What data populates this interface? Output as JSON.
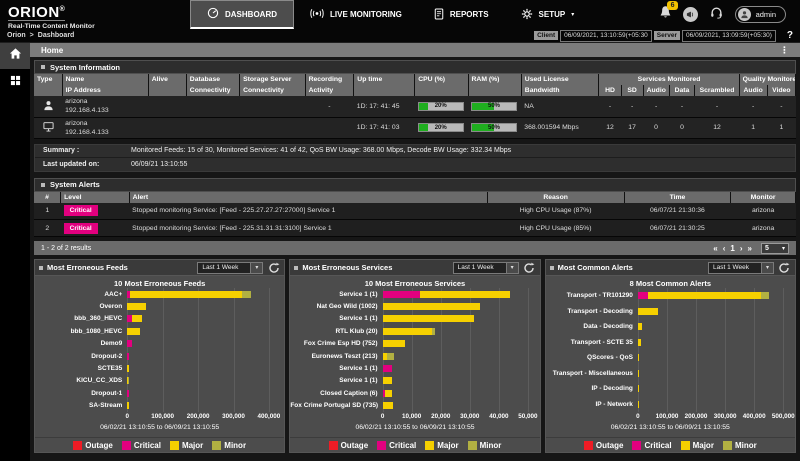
{
  "brand": {
    "name": "ORION",
    "reg": "®",
    "subtitle": "Real-Time Content Monitor"
  },
  "nav": {
    "dashboard": "DASHBOARD",
    "live_monitoring": "LIVE MONITORING",
    "reports": "REPORTS",
    "setup": "SETUP"
  },
  "topbar_right": {
    "notification_count": "6",
    "user_name": "admin"
  },
  "breadcrumb": {
    "root": "Orion",
    "separator": ">",
    "current": "Dashboard"
  },
  "clocks": {
    "client_label": "Client",
    "client_value": "06/09/2021, 13:10:59(+05:30",
    "server_label": "Server",
    "server_value": "06/09/2021, 13:09:59(+05:30)",
    "help": "?"
  },
  "page": {
    "tab_title": "Home"
  },
  "icons": {
    "kebab": "⋮",
    "caret_down": "▾"
  },
  "system_info": {
    "title": "System Information",
    "columns": {
      "type": "Type",
      "name": "Name",
      "ip": "IP Address",
      "alive": "Alive",
      "database": "Database",
      "storage": "Storage Server",
      "recording": "Recording",
      "connectivity": "Connectivity",
      "activity": "Activity",
      "uptime": "Up time",
      "cpu": "CPU (%)",
      "ram": "RAM (%)",
      "license": "Used License",
      "bandwidth": "Bandwidth",
      "services_group": "Services Monitored",
      "quality_group": "Quality Monitored",
      "hd": "HD",
      "sd": "SD",
      "audio": "Audio",
      "data": "Data",
      "scrambled": "Scrambled",
      "q_audio": "Audio",
      "q_video": "Video"
    },
    "rows": [
      {
        "name": "arizona",
        "ip": "192.168.4.133",
        "recording": "-",
        "uptime": "1D: 17: 41: 45",
        "cpu_pct": 20,
        "cpu_label": "20%",
        "ram_pct": 50,
        "ram_label": "50%",
        "bandwidth": "NA",
        "hd": "-",
        "sd": "-",
        "audio": "-",
        "data": "-",
        "scrambled": "-",
        "q_audio": "-",
        "q_video": "-"
      },
      {
        "name": "arizona",
        "ip": "192.168.4.133",
        "uptime": "1D: 17: 41: 03",
        "cpu_pct": 20,
        "cpu_label": "20%",
        "ram_pct": 50,
        "ram_label": "50%",
        "bandwidth": "368.001594 Mbps",
        "hd": "12",
        "sd": "17",
        "audio": "0",
        "data": "0",
        "scrambled": "12",
        "q_audio": "1",
        "q_video": "1"
      }
    ],
    "summary_label": "Summary :",
    "summary_text": "Monitored Feeds: 15 of 30, Monitored Services: 41 of 42, QoS BW Usage: 368.00 Mbps, Decode BW Usage: 332.34 Mbps",
    "last_updated_label": "Last updated on:",
    "last_updated_value": "06/09/21 13:10:55"
  },
  "system_alerts": {
    "title": "System Alerts",
    "columns": {
      "num": "#",
      "level": "Level",
      "alert": "Alert",
      "reason": "Reason",
      "time": "Time",
      "monitor": "Monitor"
    },
    "rows": [
      {
        "num": "1",
        "level": "Critical",
        "alert": "Stopped monitoring Service: [Feed - 225.27.27.27:27000] Service 1",
        "reason": "High CPU Usage (87%)",
        "time": "06/07/21 21:30:36",
        "monitor": "arizona"
      },
      {
        "num": "2",
        "level": "Critical",
        "alert": "Stopped monitoring Service: [Feed - 225.31.31.31:3100] Service 1",
        "reason": "High CPU Usage (85%)",
        "time": "06/07/21 21:30:25",
        "monitor": "arizona"
      }
    ]
  },
  "results_bar": {
    "text": "1 - 2 of 2 results",
    "pag_first": "«",
    "pag_prev": "‹",
    "pag_page": "1",
    "pag_next": "›",
    "pag_last": "»",
    "page_size": "5"
  },
  "colors": {
    "outage": "#ee1c25",
    "critical": "#e2007f",
    "major": "#f6d000",
    "minor": "#b1b042",
    "ok_green": "#28b828",
    "badge_yellow": "#f2c200"
  },
  "legend": [
    {
      "label": "Outage",
      "key": "outage"
    },
    {
      "label": "Critical",
      "key": "critical"
    },
    {
      "label": "Major",
      "key": "major"
    },
    {
      "label": "Minor",
      "key": "minor"
    }
  ],
  "chart_data": [
    {
      "panel_title": "Most Erroneous Feeds",
      "range_selector": "Last 1 Week",
      "type": "bar",
      "orientation": "horizontal",
      "stacked": true,
      "title": "10 Most Erroneous Feeds",
      "caption": "06/02/21 13:10:55 to 06/09/21 13:10:55",
      "xlim": [
        0,
        435000
      ],
      "xticks": [
        0,
        100000,
        200000,
        300000,
        400000
      ],
      "xtick_labels": [
        "0",
        "100,000",
        "200,000",
        "300,000",
        "400,000"
      ],
      "categories": [
        "AAC+",
        "Overon",
        "bbb_360_HEVC",
        "bbb_1080_HEVC",
        "Demo9",
        "Dropout-2",
        "SCTE35",
        "KICU_CC_XDS",
        "Dropout-1",
        "SA-Stream"
      ],
      "series": [
        {
          "name": "Outage",
          "key": "outage",
          "values": [
            0,
            0,
            0,
            0,
            0,
            0,
            0,
            0,
            0,
            0
          ]
        },
        {
          "name": "Critical",
          "key": "critical",
          "values": [
            7000,
            0,
            13000,
            0,
            14000,
            6000,
            0,
            0,
            5000,
            0
          ]
        },
        {
          "name": "Major",
          "key": "major",
          "values": [
            318000,
            52000,
            28000,
            35000,
            0,
            0,
            5000,
            3000,
            0,
            4000
          ]
        },
        {
          "name": "Minor",
          "key": "minor",
          "values": [
            24000,
            0,
            0,
            0,
            0,
            0,
            0,
            3000,
            0,
            0
          ]
        }
      ]
    },
    {
      "panel_title": "Most Erroneous Services",
      "range_selector": "Last 1 Week",
      "type": "bar",
      "orientation": "horizontal",
      "stacked": true,
      "title": "10 Most Erroneous Services",
      "caption": "06/02/21 13:10:55 to 06/09/21 13:10:55",
      "xlim": [
        0,
        53000
      ],
      "xticks": [
        0,
        10000,
        20000,
        30000,
        40000,
        50000
      ],
      "xtick_labels": [
        "0",
        "10,000",
        "20,000",
        "30,000",
        "40,000",
        "50,000"
      ],
      "categories": [
        "Service 1 (1)",
        "Nat Geo Wild (1002)",
        "Service 1 (1)",
        "RTL Klub (20)",
        "Fox Crime Esp HD (752)",
        "Euronews Teszt (213)",
        "Service 1 (1)",
        "Service 1 (1)",
        "Closed Caption (6)",
        "Fox Crime Portugal SD (735)"
      ],
      "series": [
        {
          "name": "Outage",
          "key": "outage",
          "values": [
            0,
            0,
            0,
            0,
            0,
            0,
            0,
            0,
            0,
            0
          ]
        },
        {
          "name": "Critical",
          "key": "critical",
          "values": [
            13000,
            0,
            0,
            0,
            0,
            0,
            3400,
            0,
            900,
            0
          ]
        },
        {
          "name": "Major",
          "key": "major",
          "values": [
            31000,
            33500,
            31500,
            17000,
            7800,
            1600,
            0,
            3400,
            2400,
            3600
          ]
        },
        {
          "name": "Minor",
          "key": "minor",
          "values": [
            0,
            0,
            0,
            1200,
            0,
            2200,
            0,
            0,
            0,
            0
          ]
        }
      ]
    },
    {
      "panel_title": "Most Common Alerts",
      "range_selector": "Last 1 Week",
      "type": "bar",
      "orientation": "horizontal",
      "stacked": true,
      "title": "8 Most Common Alerts",
      "caption": "06/02/21 13:10:55 to 06/09/21 13:10:55",
      "xlim": [
        0,
        530000
      ],
      "xticks": [
        0,
        100000,
        200000,
        300000,
        400000,
        500000
      ],
      "xtick_labels": [
        "0",
        "100,000",
        "200,000",
        "300,000",
        "400,000",
        "500,000"
      ],
      "categories": [
        "Transport - TR101290",
        "Transport - Decoding",
        "Data - Decoding",
        "Transport - SCTE 35",
        "QScores - QoS",
        "Transport - Miscellaneous",
        "IP - Decoding",
        "IP - Network"
      ],
      "series": [
        {
          "name": "Outage",
          "key": "outage",
          "values": [
            0,
            0,
            0,
            0,
            0,
            0,
            0,
            0
          ]
        },
        {
          "name": "Critical",
          "key": "critical",
          "values": [
            35000,
            0,
            0,
            0,
            0,
            0,
            0,
            0
          ]
        },
        {
          "name": "Major",
          "key": "major",
          "values": [
            390000,
            70000,
            15000,
            11000,
            2000,
            1500,
            1200,
            800
          ]
        },
        {
          "name": "Minor",
          "key": "minor",
          "values": [
            25000,
            0,
            0,
            0,
            0,
            0,
            0,
            0
          ]
        }
      ]
    }
  ]
}
